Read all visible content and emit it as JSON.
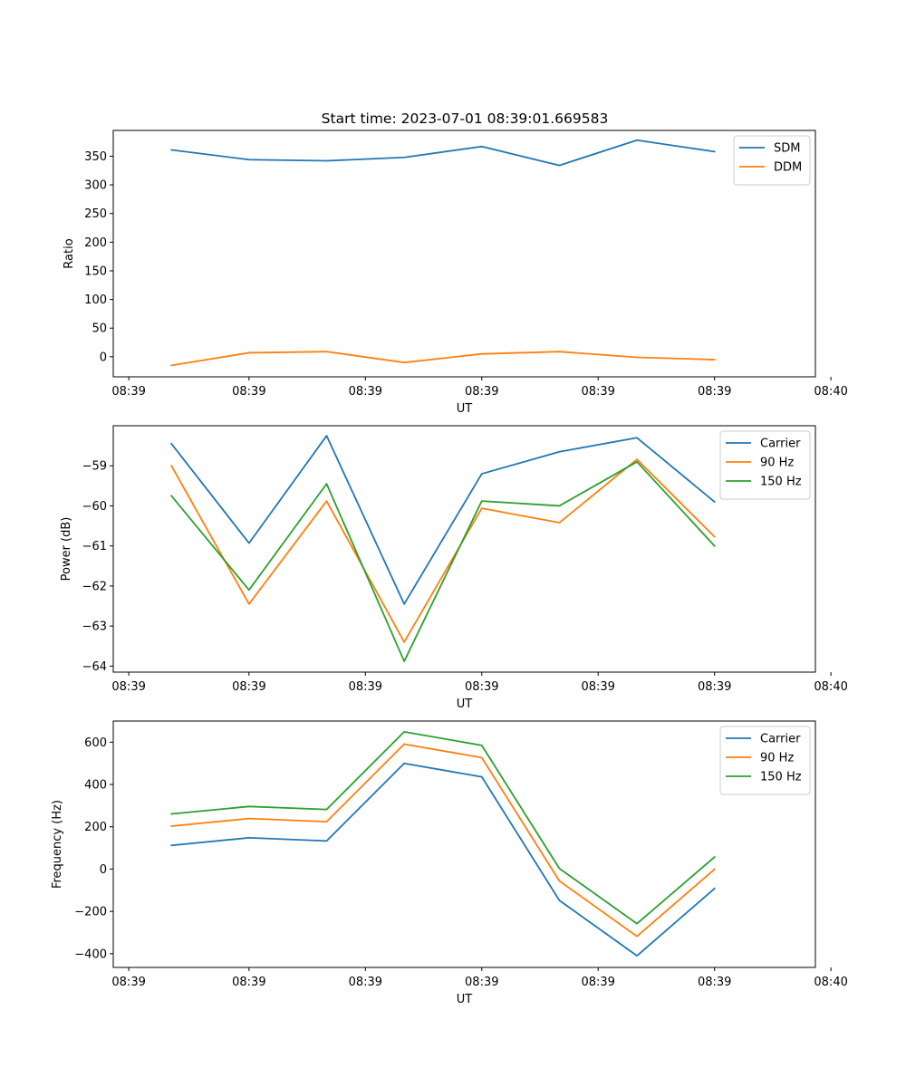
{
  "figure_title": "Start time: 2023-07-01 08:39:01.669583",
  "chart_data": [
    {
      "type": "line",
      "title": "Start time: 2023-07-01 08:39:01.669583",
      "xlabel": "UT",
      "ylabel": "Ratio",
      "x": [
        1,
        2,
        3,
        4,
        5,
        6,
        7,
        8
      ],
      "xlim": [
        0.25,
        9.3
      ],
      "x_ticks": [
        0.45,
        2.0,
        3.5,
        5.0,
        6.5,
        8.0,
        9.5
      ],
      "x_tick_labels": [
        "08:39",
        "08:39",
        "08:39",
        "08:39",
        "08:39",
        "08:39",
        "08:40"
      ],
      "ylim": [
        -35,
        395
      ],
      "y_ticks": [
        0,
        50,
        100,
        150,
        200,
        250,
        300,
        350
      ],
      "y_tick_labels": [
        "0",
        "50",
        "100",
        "150",
        "200",
        "250",
        "300",
        "350"
      ],
      "legend_position": "top-right",
      "series": [
        {
          "name": "SDM",
          "color": "#1f77b4",
          "values": [
            361,
            344,
            342,
            348,
            367,
            334,
            378,
            358
          ]
        },
        {
          "name": "DDM",
          "color": "#ff7f0e",
          "values": [
            -15,
            7,
            9,
            -10,
            5,
            9,
            -1,
            -5
          ]
        }
      ]
    },
    {
      "type": "line",
      "title": "",
      "xlabel": "UT",
      "ylabel": "Power (dB)",
      "x": [
        1,
        2,
        3,
        4,
        5,
        6,
        7,
        8
      ],
      "xlim": [
        0.25,
        9.3
      ],
      "x_ticks": [
        0.45,
        2.0,
        3.5,
        5.0,
        6.5,
        8.0,
        9.5
      ],
      "x_tick_labels": [
        "08:39",
        "08:39",
        "08:39",
        "08:39",
        "08:39",
        "08:39",
        "08:40"
      ],
      "ylim": [
        -64.15,
        -58.0
      ],
      "y_ticks": [
        -64,
        -63,
        -62,
        -61,
        -60,
        -59
      ],
      "y_tick_labels": [
        "−64",
        "−63",
        "−62",
        "−61",
        "−60",
        "−59"
      ],
      "legend_position": "top-right",
      "series": [
        {
          "name": "Carrier",
          "color": "#1f77b4",
          "values": [
            -58.45,
            -60.93,
            -58.25,
            -62.45,
            -59.2,
            -58.65,
            -58.3,
            -59.9
          ]
        },
        {
          "name": "90 Hz",
          "color": "#ff7f0e",
          "values": [
            -59.0,
            -62.45,
            -59.88,
            -63.4,
            -60.06,
            -60.42,
            -58.84,
            -60.77
          ]
        },
        {
          "name": "150 Hz",
          "color": "#2ca02c",
          "values": [
            -59.75,
            -62.1,
            -59.45,
            -63.88,
            -59.88,
            -60.0,
            -58.9,
            -61.0
          ]
        }
      ]
    },
    {
      "type": "line",
      "title": "",
      "xlabel": "UT",
      "ylabel": "Frequency (Hz)",
      "x": [
        1,
        2,
        3,
        4,
        5,
        6,
        7,
        8
      ],
      "xlim": [
        0.25,
        9.3
      ],
      "x_ticks": [
        0.45,
        2.0,
        3.5,
        5.0,
        6.5,
        8.0,
        9.5
      ],
      "x_tick_labels": [
        "08:39",
        "08:39",
        "08:39",
        "08:39",
        "08:39",
        "08:39",
        "08:40"
      ],
      "ylim": [
        -465,
        700
      ],
      "y_ticks": [
        -400,
        -200,
        0,
        200,
        400,
        600
      ],
      "y_tick_labels": [
        "−400",
        "−200",
        "0",
        "200",
        "400",
        "600"
      ],
      "legend_position": "top-right",
      "series": [
        {
          "name": "Carrier",
          "color": "#1f77b4",
          "values": [
            112,
            148,
            133,
            500,
            436,
            -148,
            -410,
            -92
          ]
        },
        {
          "name": "90 Hz",
          "color": "#ff7f0e",
          "values": [
            203,
            239,
            224,
            591,
            527,
            -56,
            -318,
            -1
          ]
        },
        {
          "name": "150 Hz",
          "color": "#2ca02c",
          "values": [
            261,
            296,
            282,
            649,
            585,
            3,
            -258,
            57
          ]
        }
      ]
    }
  ]
}
